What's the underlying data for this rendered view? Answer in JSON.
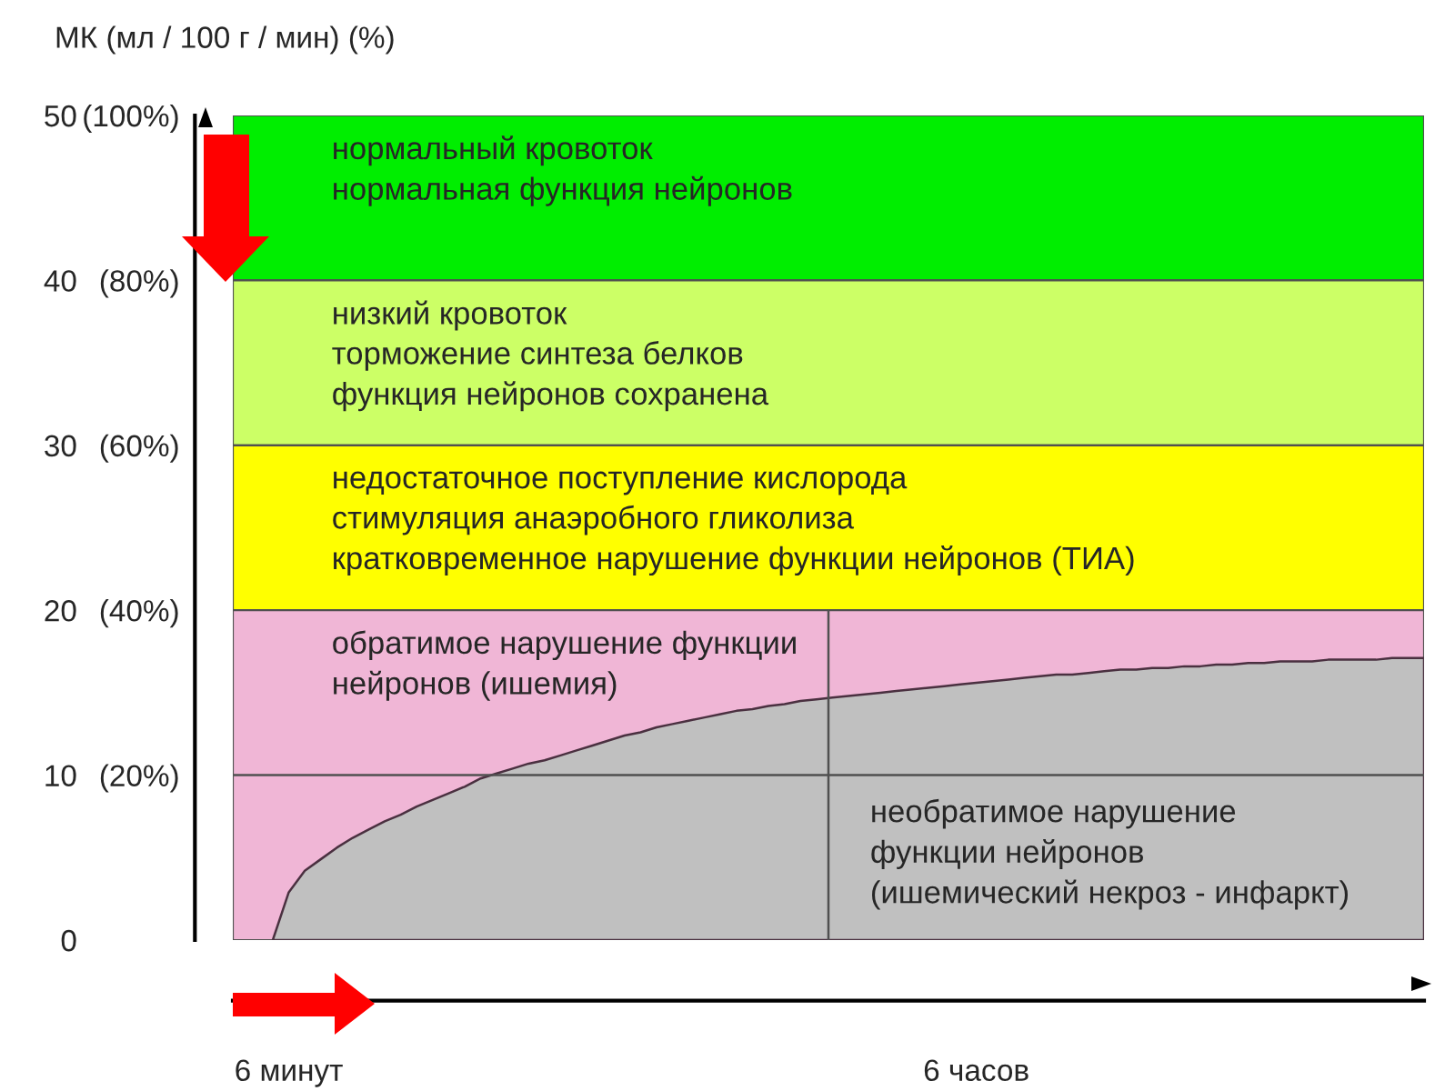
{
  "chart_data": {
    "type": "area",
    "y2label": "МК (мл / 100 г / мин) (%)",
    "categories": [
      null,
      null,
      null,
      "6 минут",
      null,
      null,
      null,
      null,
      null,
      null,
      null,
      null,
      null,
      null,
      null,
      null,
      null,
      null,
      null,
      null,
      null,
      null,
      null,
      null,
      null,
      null,
      null,
      null,
      null,
      null,
      null,
      null,
      null,
      null,
      null,
      null,
      null,
      null,
      null,
      null,
      null,
      null,
      null,
      null,
      null,
      null,
      "6 часов",
      null,
      null,
      null,
      null,
      null,
      null,
      null,
      null,
      null,
      null,
      null,
      null,
      null,
      null,
      null,
      null,
      null,
      null,
      null,
      null,
      null,
      null,
      null,
      null,
      null,
      null,
      null,
      null
    ],
    "series": [
      {
        "name": "необратимое нарушение\nфункции нейронов\n(ишемический некроз - инфаркт)",
        "color": "#c0c0c0",
        "values": [
          null,
          null,
          0,
          2.9,
          4.2,
          4.9,
          5.6,
          6.2,
          6.7,
          7.2,
          7.6,
          8.1,
          8.5,
          8.9,
          9.3,
          9.8,
          10.1,
          10.4,
          10.7,
          10.9,
          11.2,
          11.5,
          11.8,
          12.1,
          12.4,
          12.6,
          12.9,
          13.1,
          13.3,
          13.5,
          13.7,
          13.9,
          14.0,
          14.2,
          14.3,
          14.5,
          14.6,
          14.7,
          14.8,
          14.9,
          15.0,
          15.1,
          15.2,
          15.3,
          15.4,
          15.5,
          15.6,
          15.7,
          15.8,
          15.9,
          16.0,
          16.1,
          16.1,
          16.2,
          16.3,
          16.4,
          16.4,
          16.5,
          16.5,
          16.6,
          16.6,
          16.7,
          16.7,
          16.8,
          16.8,
          16.9,
          16.9,
          16.9,
          17.0,
          17.0,
          17.0,
          17.0,
          17.1,
          17.1,
          17.1
        ]
      }
    ],
    "ylim": [
      0,
      50
    ],
    "yticks": [
      0,
      10,
      20,
      30,
      40,
      50
    ],
    "y2lim": [
      0,
      100
    ],
    "y2ticks": [
      {
        "value": 20,
        "label": "(20%)"
      },
      {
        "value": 40,
        "label": "(40%)"
      },
      {
        "value": 60,
        "label": "(60%)"
      },
      {
        "value": 80,
        "label": "(80%)"
      },
      {
        "value": 100,
        "label": "(100%)"
      }
    ],
    "bands": [
      {
        "axis": "y",
        "from": 40,
        "to": 50,
        "color": "#00ee00",
        "label": "нормальный кровоток\nнормальная функция нейронов"
      },
      {
        "axis": "y",
        "from": 30,
        "to": 40,
        "color": "#ccff66",
        "label": "низкий кровоток\nторможение синтеза белков\nфункция нейронов сохранена"
      },
      {
        "axis": "y",
        "from": 20,
        "to": 30,
        "color": "#ffff00",
        "label": "недостаточное поступление кислорода\nстимуляция анаэробного гликолиза\nкратковременное нарушение функции нейронов (ТИА)"
      },
      {
        "axis": "y",
        "from": 0,
        "to": 20,
        "color": "#f0b6d6",
        "label": "обратимое нарушение функции\nнейронов (ишемия)"
      }
    ],
    "ref_lines": [
      {
        "axis": "y",
        "value": 10,
        "color": "#505050"
      }
    ]
  }
}
